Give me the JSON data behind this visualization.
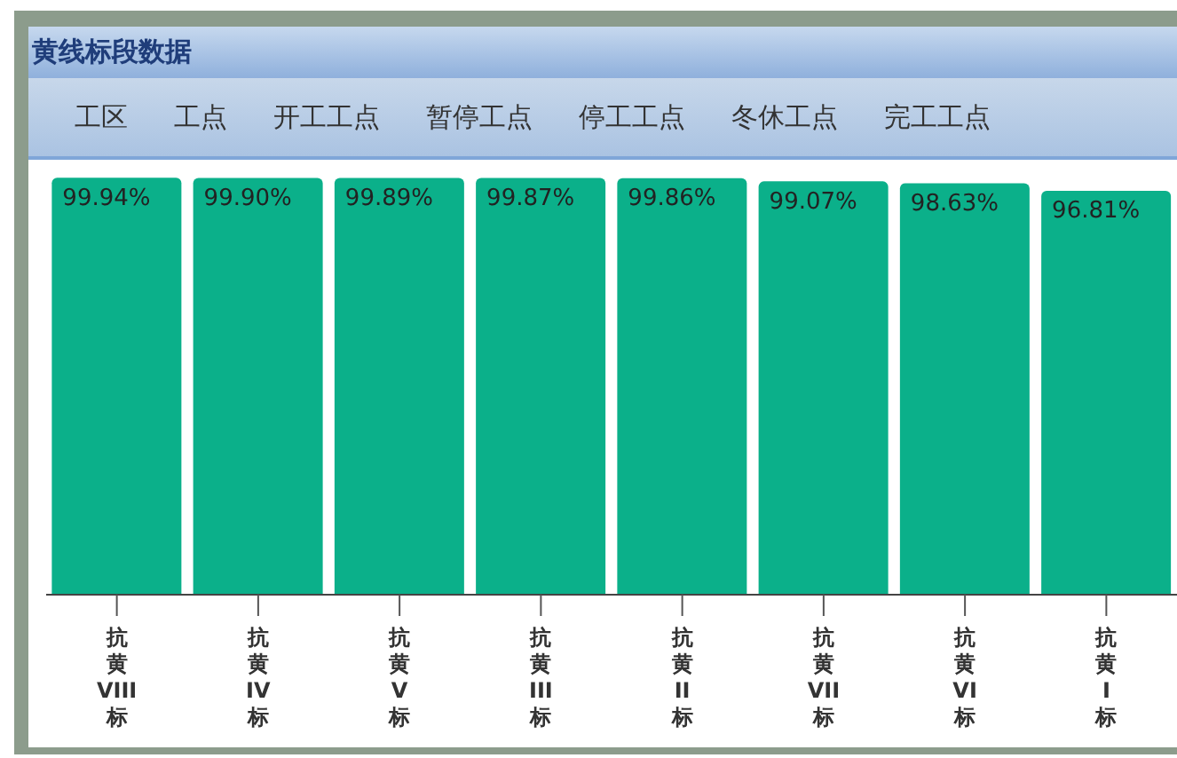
{
  "chart_data": {
    "type": "bar",
    "title": "黄线标段数据",
    "annotations": [
      "工区",
      "工点",
      "开工工点",
      "暂停工点",
      "停工工点",
      "冬休工点",
      "完工工点"
    ],
    "categories": [
      "抗黄VIII标",
      "抗黄IV标",
      "抗黄V标",
      "抗黄III标",
      "抗黄II标",
      "抗黄VII标",
      "抗黄VI标",
      "抗黄I标"
    ],
    "values": [
      99.94,
      99.9,
      99.89,
      99.87,
      99.86,
      99.07,
      98.63,
      96.81
    ],
    "value_labels": [
      "99.94%",
      "99.90%",
      "99.89%",
      "99.87%",
      "99.86%",
      "99.07%",
      "98.63%",
      "96.81%"
    ],
    "color": "#0bb08a",
    "ylim": [
      0,
      100
    ],
    "tick_labels": "x"
  }
}
